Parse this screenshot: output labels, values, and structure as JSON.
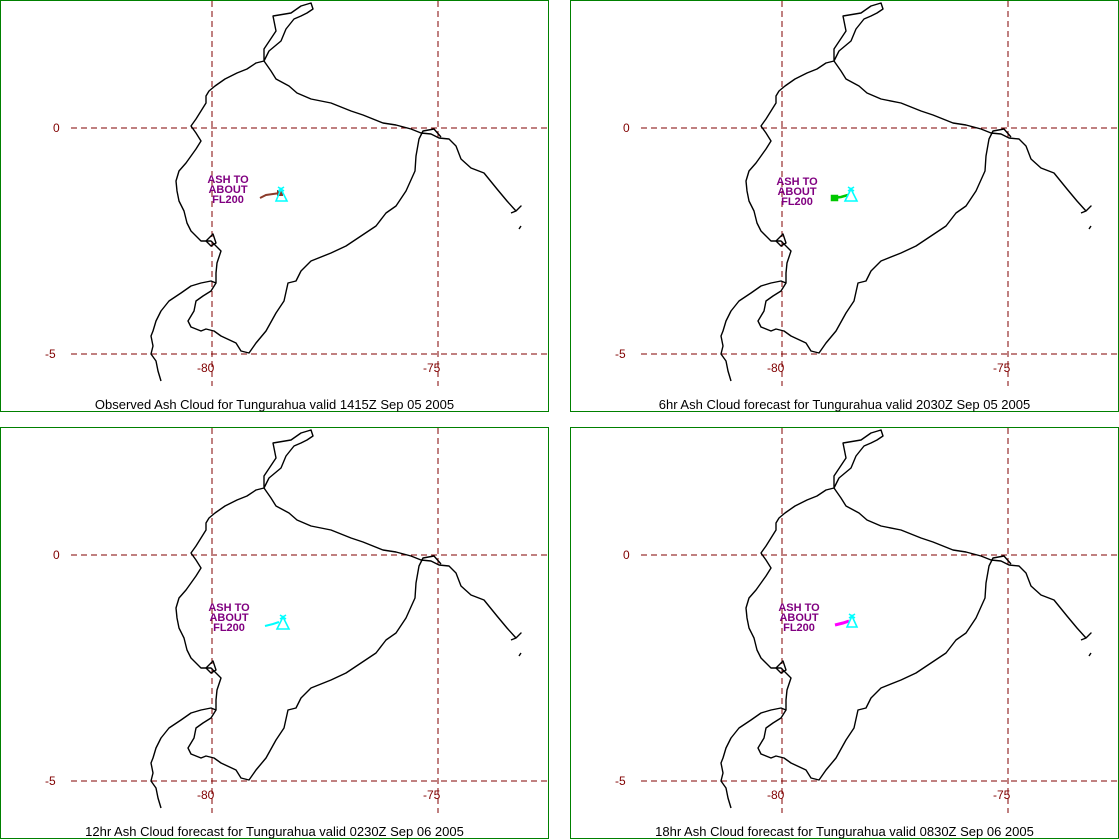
{
  "grid_labels": {
    "lat_top": "0",
    "lat_bottom": "-5",
    "lon_left": "-80",
    "lon_right": "-75"
  },
  "ash_label": [
    "ASH TO",
    "ABOUT",
    "FL200"
  ],
  "colors": {
    "frame": "#008000",
    "grid": "#800000",
    "coast": "#000000",
    "ash_label": "#800080",
    "volcano": "#00ffff"
  },
  "panels": [
    {
      "caption": "Observed Ash Cloud for Tungurahua valid 1415Z Sep 05 2005",
      "plume_color": "#8b3a2a"
    },
    {
      "caption": "6hr Ash Cloud forecast for Tungurahua valid 2030Z Sep 05 2005",
      "plume_color": "#00c800"
    },
    {
      "caption": "12hr Ash Cloud forecast for Tungurahua valid 0230Z Sep 06 2005",
      "plume_color": "#00ffff"
    },
    {
      "caption": "18hr Ash Cloud forecast for Tungurahua valid 0830Z Sep 06 2005",
      "plume_color": "#ff00ff"
    }
  ]
}
